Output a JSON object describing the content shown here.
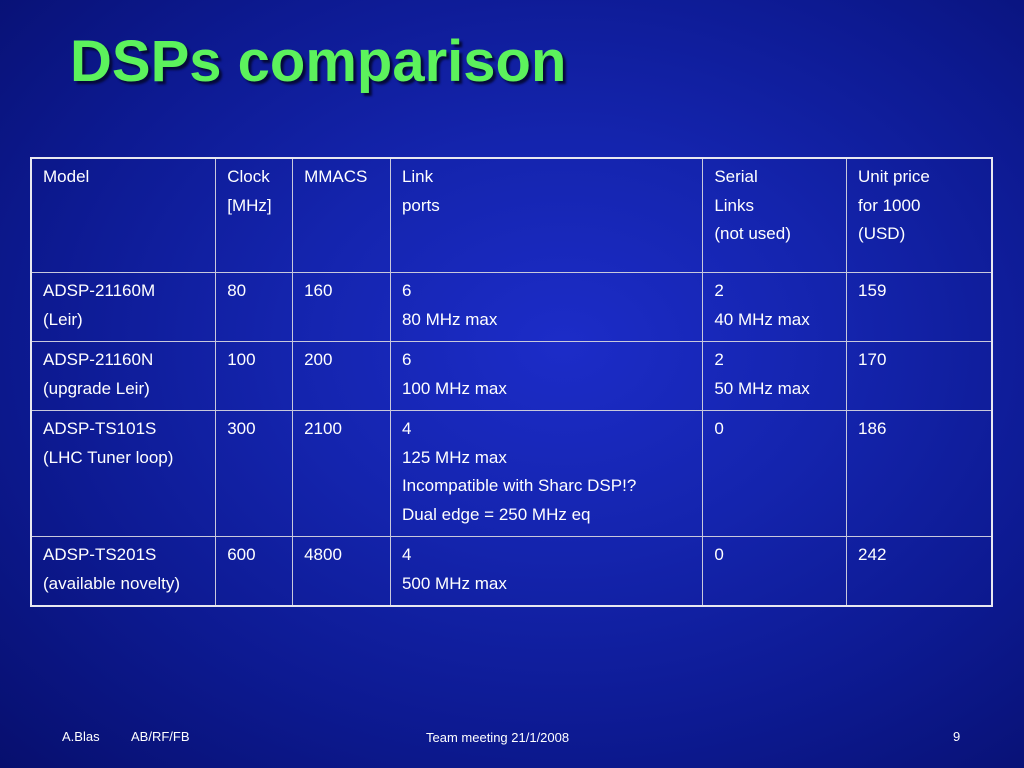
{
  "slide": {
    "title": "DSPs comparison"
  },
  "table": {
    "header": [
      [
        "Model"
      ],
      [
        "Clock",
        "[MHz]"
      ],
      [
        "MMACS"
      ],
      [
        "Link",
        "ports"
      ],
      [
        "Serial",
        "Links",
        "(not used)"
      ],
      [
        "Unit price",
        "for 1000",
        "(USD)"
      ]
    ],
    "rows": [
      [
        [
          "ADSP-21160M",
          "(Leir)"
        ],
        [
          "80"
        ],
        [
          "160"
        ],
        [
          "6",
          "80 MHz max"
        ],
        [
          "2",
          "40 MHz max"
        ],
        [
          "159"
        ]
      ],
      [
        [
          "ADSP-21160N",
          "(upgrade Leir)"
        ],
        [
          "100"
        ],
        [
          "200"
        ],
        [
          "6",
          "100 MHz max"
        ],
        [
          "2",
          "50 MHz max"
        ],
        [
          "170"
        ]
      ],
      [
        [
          "ADSP-TS101S",
          "(LHC Tuner loop)"
        ],
        [
          "300"
        ],
        [
          "2100"
        ],
        [
          "4",
          "125 MHz max",
          "Incompatible with Sharc DSP!?",
          "Dual edge = 250 MHz eq"
        ],
        [
          "0"
        ],
        [
          "186"
        ]
      ],
      [
        [
          "ADSP-TS201S",
          "(available novelty)"
        ],
        [
          "600"
        ],
        [
          "4800"
        ],
        [
          "4",
          "500 MHz max"
        ],
        [
          "0"
        ],
        [
          "242"
        ]
      ]
    ]
  },
  "footer": {
    "author": "A.Blas",
    "group": "AB/RF/FB",
    "event": "Team meeting 21/1/2008",
    "page_number": "9"
  }
}
